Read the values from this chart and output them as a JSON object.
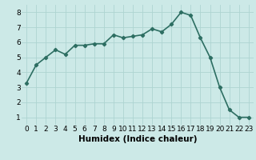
{
  "x": [
    0,
    1,
    2,
    3,
    4,
    5,
    6,
    7,
    8,
    9,
    10,
    11,
    12,
    13,
    14,
    15,
    16,
    17,
    18,
    19,
    20,
    21,
    22,
    23
  ],
  "y": [
    3.3,
    4.5,
    5.0,
    5.5,
    5.2,
    5.8,
    5.8,
    5.9,
    5.9,
    6.5,
    6.3,
    6.4,
    6.5,
    6.9,
    6.7,
    7.2,
    8.0,
    7.8,
    6.3,
    5.0,
    3.0,
    1.5,
    1.0,
    1.0
  ],
  "line_color": "#2d6e62",
  "marker": "D",
  "marker_size": 2.2,
  "bg_color": "#cce9e7",
  "grid_color": "#aed4d1",
  "xlabel": "Humidex (Indice chaleur)",
  "xlim": [
    -0.5,
    23.5
  ],
  "ylim": [
    0.5,
    8.5
  ],
  "xticks": [
    0,
    1,
    2,
    3,
    4,
    5,
    6,
    7,
    8,
    9,
    10,
    11,
    12,
    13,
    14,
    15,
    16,
    17,
    18,
    19,
    20,
    21,
    22,
    23
  ],
  "yticks": [
    1,
    2,
    3,
    4,
    5,
    6,
    7,
    8
  ],
  "xlabel_fontsize": 7.5,
  "tick_fontsize": 6.5,
  "line_width": 1.2
}
